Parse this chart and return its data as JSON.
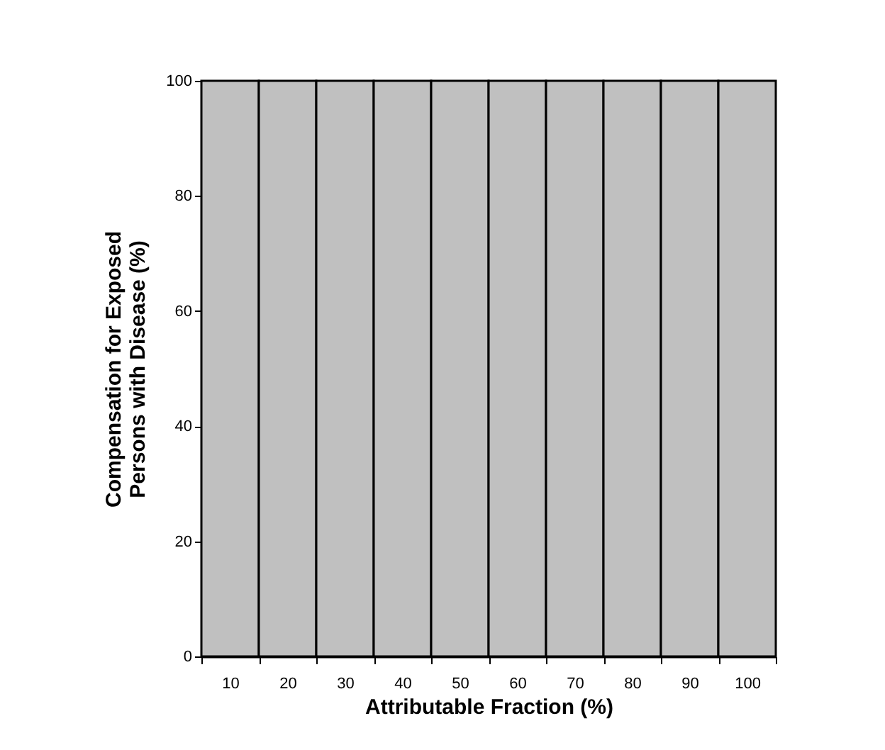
{
  "chart_data": {
    "type": "bar",
    "categories": [
      "10",
      "20",
      "30",
      "40",
      "50",
      "60",
      "70",
      "80",
      "90",
      "100"
    ],
    "values": [
      100,
      100,
      100,
      100,
      100,
      100,
      100,
      100,
      100,
      100
    ],
    "color": "#c0c0c0",
    "xlabel": "Attributable Fraction (%)",
    "ylabel": "Compensation for Exposed Persons with Disease (%)",
    "ylim": [
      0,
      100
    ],
    "yticks": [
      0,
      20,
      40,
      60,
      80,
      100
    ],
    "grid": false
  }
}
